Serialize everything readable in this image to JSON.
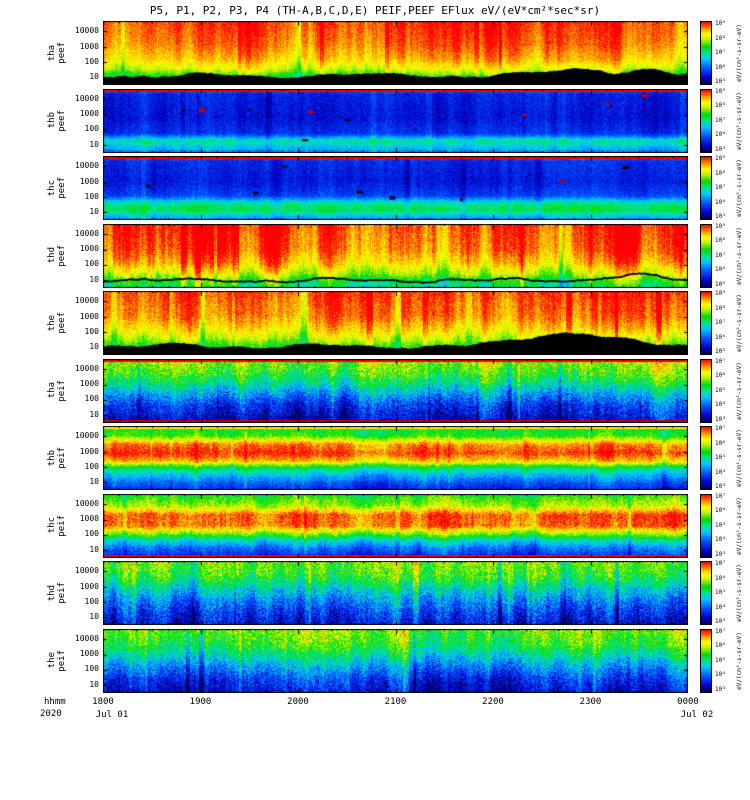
{
  "title": "P5, P1, P2, P3, P4 (TH-A,B,C,D,E)  PEIF,PEEF  EFlux  eV/(eV*cm²*sec*sr)",
  "x_axis": {
    "format_label": "hhmm",
    "year_label": "2020",
    "tick_labels": [
      "1800",
      "1900",
      "2000",
      "2100",
      "2200",
      "2300",
      "0000"
    ],
    "date_left": "Jul 01",
    "date_right": "Jul 02"
  },
  "chart_data": {
    "type": "heatmap",
    "subtype": "time-energy spectrogram stack",
    "title": "P5, P1, P2, P3, P4 (TH-A,B,C,D,E)  PEIF,PEEF  EFlux  eV/(eV*cm²*sec*sr)",
    "x_label": "hhmm",
    "x_range": [
      "2020 Jul 01 1800",
      "2020 Jul 02 0000"
    ],
    "x_tick_labels": [
      "1800",
      "1900",
      "2000",
      "2100",
      "2200",
      "2300",
      "0000"
    ],
    "y_scale": "log",
    "y_unit": "eV",
    "y_tick_labels": [
      "10000",
      "1000",
      "100",
      "10"
    ],
    "colorbar_unit": "eV/(cm²-s-sr-eV)",
    "legend_position": "right-colorbars",
    "grid": false,
    "colormap": [
      {
        "t": 0.0,
        "c": "#000050"
      },
      {
        "t": 0.1,
        "c": "#0000c8"
      },
      {
        "t": 0.25,
        "c": "#0050ff"
      },
      {
        "t": 0.4,
        "c": "#00c8ff"
      },
      {
        "t": 0.5,
        "c": "#00e68c"
      },
      {
        "t": 0.6,
        "c": "#00dc00"
      },
      {
        "t": 0.72,
        "c": "#c8f000"
      },
      {
        "t": 0.8,
        "c": "#ffff00"
      },
      {
        "t": 0.9,
        "c": "#ff8c00"
      },
      {
        "t": 1.0,
        "c": "#ff0000"
      }
    ],
    "panels": [
      {
        "label": [
          "tha",
          "peef"
        ],
        "species": "electrons",
        "seed": 101,
        "noise": 0.05,
        "col_var": 0.1,
        "profile": [
          [
            0,
            0.97
          ],
          [
            0.35,
            0.93
          ],
          [
            0.6,
            0.86
          ],
          [
            0.75,
            0.76
          ],
          [
            0.88,
            0.6
          ],
          [
            1,
            0.52
          ]
        ],
        "top_edge": null,
        "bottom_edge": null,
        "blotches": 0,
        "trace": {
          "base": 0.86,
          "wiggle": 0.03,
          "fill": true,
          "bumps": [
            {
              "c": 0.82,
              "w": 0.05,
              "h": 0.1
            },
            {
              "c": 0.93,
              "w": 0.03,
              "h": 0.08
            }
          ]
        },
        "colorbar_labels": [
          "10⁹",
          "10⁸",
          "10⁷",
          "10⁶",
          "10⁵"
        ]
      },
      {
        "label": [
          "thb",
          "peef"
        ],
        "species": "electrons",
        "seed": 202,
        "noise": 0.06,
        "col_var": 0.06,
        "profile": [
          [
            0,
            0.3
          ],
          [
            0.08,
            0.17
          ],
          [
            0.45,
            0.14
          ],
          [
            0.7,
            0.2
          ],
          [
            0.82,
            0.5
          ],
          [
            0.9,
            0.42
          ],
          [
            1,
            0.3
          ]
        ],
        "top_edge": "#ff0000",
        "bottom_edge": null,
        "blotches": 10,
        "trace": null,
        "colorbar_labels": [
          "10⁹",
          "10⁸",
          "10⁷",
          "10⁶",
          "10⁵"
        ]
      },
      {
        "label": [
          "thc",
          "peef"
        ],
        "species": "electrons",
        "seed": 303,
        "noise": 0.06,
        "col_var": 0.06,
        "profile": [
          [
            0,
            0.32
          ],
          [
            0.08,
            0.18
          ],
          [
            0.4,
            0.15
          ],
          [
            0.62,
            0.22
          ],
          [
            0.75,
            0.5
          ],
          [
            0.85,
            0.55
          ],
          [
            0.95,
            0.4
          ],
          [
            1,
            0.3
          ]
        ],
        "top_edge": "#ff0000",
        "bottom_edge": null,
        "blotches": 8,
        "trace": null,
        "colorbar_labels": [
          "10⁹",
          "10⁸",
          "10⁷",
          "10⁶",
          "10⁵"
        ]
      },
      {
        "label": [
          "thd",
          "peef"
        ],
        "species": "electrons",
        "seed": 404,
        "noise": 0.06,
        "col_var": 0.16,
        "profile": [
          [
            0,
            0.96
          ],
          [
            0.4,
            0.92
          ],
          [
            0.62,
            0.84
          ],
          [
            0.78,
            0.72
          ],
          [
            0.9,
            0.58
          ],
          [
            1,
            0.5
          ]
        ],
        "top_edge": null,
        "bottom_edge": null,
        "blotches": 0,
        "trace": {
          "base": 0.88,
          "wiggle": 0.02,
          "fill": false,
          "bumps": [
            {
              "c": 0.9,
              "w": 0.04,
              "h": 0.08
            }
          ]
        },
        "colorbar_labels": [
          "10⁹",
          "10⁸",
          "10⁷",
          "10⁶",
          "10⁵"
        ]
      },
      {
        "label": [
          "the",
          "peef"
        ],
        "species": "electrons",
        "seed": 505,
        "noise": 0.06,
        "col_var": 0.12,
        "profile": [
          [
            0,
            0.95
          ],
          [
            0.4,
            0.9
          ],
          [
            0.6,
            0.82
          ],
          [
            0.75,
            0.72
          ],
          [
            0.88,
            0.6
          ],
          [
            1,
            0.52
          ]
        ],
        "top_edge": null,
        "bottom_edge": null,
        "blotches": 0,
        "trace": {
          "base": 0.87,
          "wiggle": 0.03,
          "fill": true,
          "bumps": [
            {
              "c": 0.8,
              "w": 0.07,
              "h": 0.22
            }
          ]
        },
        "colorbar_labels": [
          "10⁹",
          "10⁸",
          "10⁷",
          "10⁶",
          "10⁵"
        ]
      },
      {
        "label": [
          "tha",
          "peif"
        ],
        "species": "ions",
        "seed": 606,
        "noise": 0.13,
        "col_var": 0.14,
        "profile": [
          [
            0,
            0.72
          ],
          [
            0.2,
            0.64
          ],
          [
            0.38,
            0.52
          ],
          [
            0.55,
            0.36
          ],
          [
            0.72,
            0.22
          ],
          [
            0.9,
            0.14
          ],
          [
            1,
            0.1
          ]
        ],
        "top_edge": "#ff0000",
        "bottom_edge": "#cc0000",
        "blotches": 0,
        "trace": null,
        "colorbar_labels": [
          "10⁷",
          "10⁶",
          "10⁵",
          "10⁴",
          "10³"
        ]
      },
      {
        "label": [
          "thb",
          "peif"
        ],
        "species": "ions",
        "seed": 707,
        "noise": 0.07,
        "col_var": 0.08,
        "profile": [
          [
            0,
            0.55
          ],
          [
            0.15,
            0.62
          ],
          [
            0.28,
            0.9
          ],
          [
            0.42,
            0.97
          ],
          [
            0.55,
            0.85
          ],
          [
            0.65,
            0.55
          ],
          [
            0.78,
            0.38
          ],
          [
            0.9,
            0.25
          ],
          [
            1,
            0.18
          ]
        ],
        "top_edge": "#ffe800",
        "bottom_edge": null,
        "blotches": 0,
        "trace": null,
        "colorbar_labels": [
          "10⁷",
          "10⁶",
          "10⁵",
          "10⁴",
          "10³"
        ]
      },
      {
        "label": [
          "thc",
          "peif"
        ],
        "species": "ions",
        "seed": 808,
        "noise": 0.08,
        "col_var": 0.1,
        "profile": [
          [
            0,
            0.6
          ],
          [
            0.18,
            0.72
          ],
          [
            0.32,
            0.95
          ],
          [
            0.5,
            0.93
          ],
          [
            0.62,
            0.7
          ],
          [
            0.72,
            0.48
          ],
          [
            0.85,
            0.3
          ],
          [
            1,
            0.18
          ]
        ],
        "top_edge": null,
        "bottom_edge": "#ff0000",
        "blotches": 0,
        "trace": null,
        "colorbar_labels": [
          "10⁷",
          "10⁶",
          "10⁵",
          "10⁴",
          "10³"
        ]
      },
      {
        "label": [
          "thd",
          "peif"
        ],
        "species": "ions",
        "seed": 909,
        "noise": 0.13,
        "col_var": 0.16,
        "profile": [
          [
            0,
            0.66
          ],
          [
            0.25,
            0.58
          ],
          [
            0.45,
            0.42
          ],
          [
            0.62,
            0.3
          ],
          [
            0.8,
            0.2
          ],
          [
            1,
            0.12
          ]
        ],
        "top_edge": null,
        "bottom_edge": null,
        "blotches": 0,
        "trace": null,
        "colorbar_labels": [
          "10⁷",
          "10⁶",
          "10⁵",
          "10⁴",
          "10³"
        ]
      },
      {
        "label": [
          "the",
          "peif"
        ],
        "species": "ions",
        "seed": 1010,
        "noise": 0.12,
        "col_var": 0.14,
        "profile": [
          [
            0,
            0.68
          ],
          [
            0.25,
            0.6
          ],
          [
            0.45,
            0.46
          ],
          [
            0.6,
            0.34
          ],
          [
            0.78,
            0.22
          ],
          [
            1,
            0.13
          ]
        ],
        "top_edge": null,
        "bottom_edge": null,
        "blotches": 0,
        "trace": null,
        "colorbar_labels": [
          "10⁷",
          "10⁶",
          "10⁵",
          "10⁴",
          "10³"
        ]
      }
    ]
  }
}
